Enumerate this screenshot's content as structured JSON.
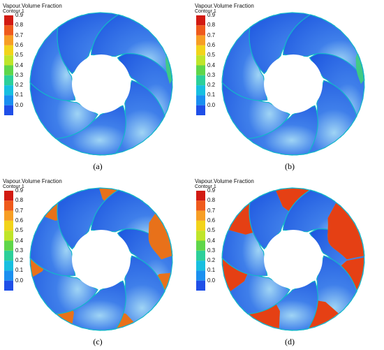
{
  "legend": {
    "title": "Vapour.Volume Fraction",
    "subtitle": "Contour 1",
    "ticks": [
      "0.9",
      "0.8",
      "0.7",
      "0.6",
      "0.5",
      "0.4",
      "0.3",
      "0.2",
      "0.1",
      "0.0"
    ],
    "colors": [
      "#d21a12",
      "#ef5a1c",
      "#f79e24",
      "#f2d41a",
      "#bfe52a",
      "#5fd64a",
      "#2ccf9a",
      "#17bfe0",
      "#1a8ff0",
      "#1f4fe8"
    ]
  },
  "panels": [
    {
      "caption": "(a)",
      "vapour_intensity": 0.02
    },
    {
      "caption": "(b)",
      "vapour_intensity": 0.08
    },
    {
      "caption": "(c)",
      "vapour_intensity": 0.55
    },
    {
      "caption": "(d)",
      "vapour_intensity": 0.95
    }
  ],
  "colors": {
    "blade": "#1e57e0",
    "blade_edge": "#12b7c9",
    "blade_highlight": "#9fd4f5",
    "vapour_high": "#e53a14",
    "vapour_mid": "#f5b21e",
    "vapour_low": "#3fd07a"
  }
}
